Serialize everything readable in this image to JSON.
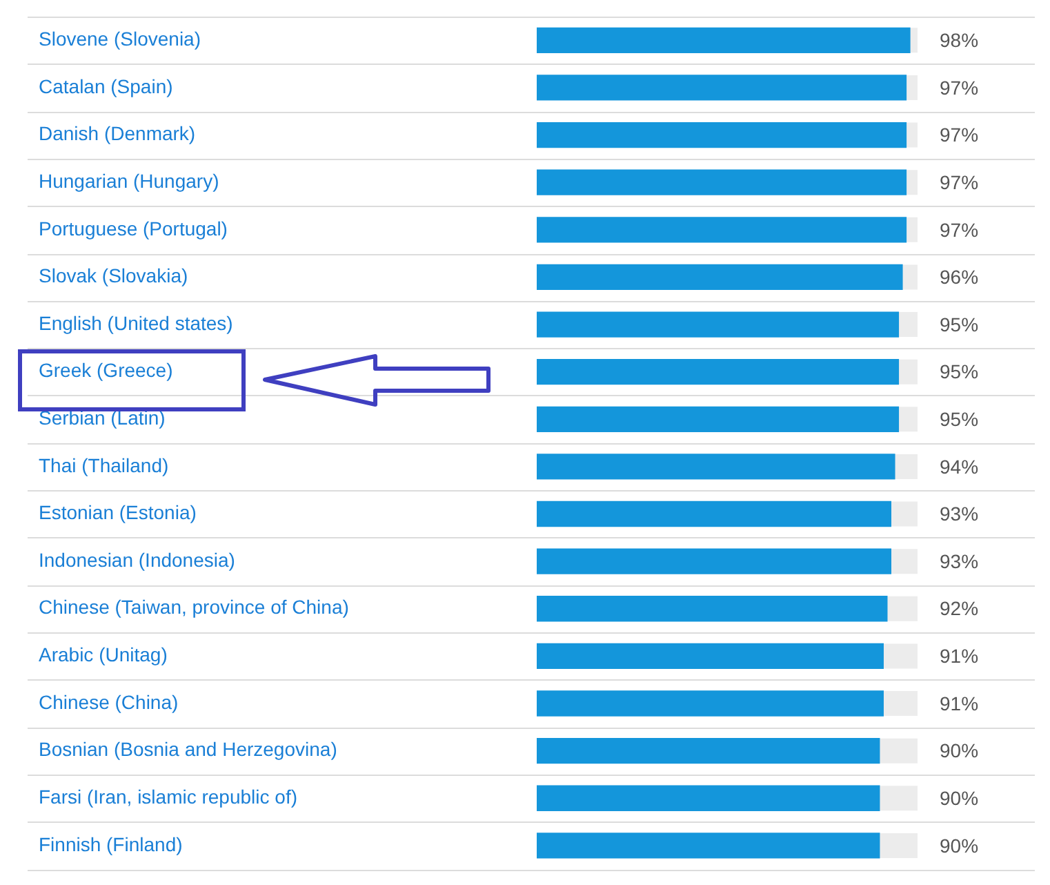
{
  "chart_data": {
    "type": "bar",
    "orientation": "horizontal",
    "categories": [
      "Slovene (Slovenia)",
      "Catalan (Spain)",
      "Danish (Denmark)",
      "Hungarian (Hungary)",
      "Portuguese (Portugal)",
      "Slovak (Slovakia)",
      "English (United states)",
      "Greek (Greece)",
      "Serbian (Latin)",
      "Thai (Thailand)",
      "Estonian (Estonia)",
      "Indonesian (Indonesia)",
      "Chinese (Taiwan, province of China)",
      "Arabic (Unitag)",
      "Chinese (China)",
      "Bosnian (Bosnia and Herzegovina)",
      "Farsi (Iran, islamic republic of)",
      "Finnish (Finland)"
    ],
    "values": [
      98,
      97,
      97,
      97,
      97,
      96,
      95,
      95,
      95,
      94,
      93,
      93,
      92,
      91,
      91,
      90,
      90,
      90
    ],
    "value_labels": [
      "98%",
      "97%",
      "97%",
      "97%",
      "97%",
      "96%",
      "95%",
      "95%",
      "95%",
      "94%",
      "93%",
      "93%",
      "92%",
      "91%",
      "91%",
      "90%",
      "90%",
      "90%"
    ],
    "color": "#1496db",
    "xlim": [
      0,
      100
    ],
    "tick_labels": "y",
    "grid": "y",
    "legend": false
  }
}
